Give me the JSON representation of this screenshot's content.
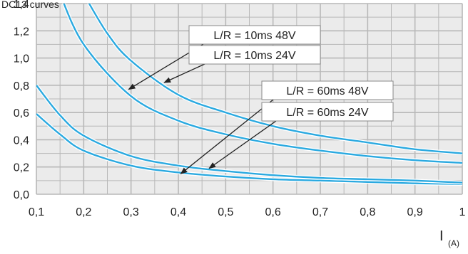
{
  "chart_data": {
    "type": "line",
    "title": "DC13 curves",
    "xlabel": "I",
    "xlabel_unit": "(A)",
    "ylabel": "",
    "xlim": [
      0.1,
      1.0
    ],
    "ylim": [
      0.0,
      1.4
    ],
    "x_ticks": [
      "0,1",
      "0,2",
      "0,3",
      "0,4",
      "0,5",
      "0,6",
      "0,7",
      "0,8",
      "0,9",
      "1"
    ],
    "y_ticks": [
      "0,0",
      "0,2",
      "0,4",
      "0,6",
      "0,8",
      "1,0",
      "1,2",
      "1,4"
    ],
    "grid": true,
    "colors": {
      "curve": "#2aa9e0",
      "grid": "#b8b8b8",
      "background": "#ebebeb",
      "annotation_border": "#888888",
      "arrow": "#222222"
    },
    "series": [
      {
        "name": "L/R = 10ms 48V",
        "x": [
          0.15,
          0.2,
          0.3,
          0.4,
          0.5,
          0.6,
          0.7,
          0.8,
          0.9,
          1.0
        ],
        "values": [
          1.47,
          1.1,
          0.72,
          0.54,
          0.44,
          0.37,
          0.32,
          0.28,
          0.25,
          0.23
        ]
      },
      {
        "name": "L/R = 10ms 24V",
        "x": [
          0.2,
          0.25,
          0.3,
          0.4,
          0.5,
          0.6,
          0.7,
          0.8,
          0.9,
          1.0
        ],
        "values": [
          1.47,
          1.18,
          0.98,
          0.73,
          0.6,
          0.5,
          0.43,
          0.38,
          0.33,
          0.3
        ]
      },
      {
        "name": "L/R = 60ms 48V",
        "x": [
          0.1,
          0.15,
          0.2,
          0.3,
          0.4,
          0.5,
          0.6,
          0.7,
          0.8,
          0.9,
          1.0
        ],
        "values": [
          0.59,
          0.44,
          0.32,
          0.21,
          0.16,
          0.13,
          0.11,
          0.1,
          0.09,
          0.08,
          0.075
        ]
      },
      {
        "name": "L/R = 60ms 24V",
        "x": [
          0.1,
          0.15,
          0.2,
          0.3,
          0.4,
          0.5,
          0.6,
          0.7,
          0.8,
          0.9,
          1.0
        ],
        "values": [
          0.8,
          0.58,
          0.43,
          0.28,
          0.21,
          0.17,
          0.14,
          0.12,
          0.11,
          0.1,
          0.085
        ]
      }
    ],
    "annotations": [
      {
        "text": "L/R = 10ms 48V",
        "arrow_to": [
          0.295,
          0.77
        ]
      },
      {
        "text": "L/R = 10ms 24V",
        "arrow_to": [
          0.37,
          0.82
        ]
      },
      {
        "text": "L/R = 60ms 48V",
        "arrow_to": [
          0.405,
          0.15
        ]
      },
      {
        "text": "L/R = 60ms 24V",
        "arrow_to": [
          0.465,
          0.19
        ]
      }
    ]
  }
}
